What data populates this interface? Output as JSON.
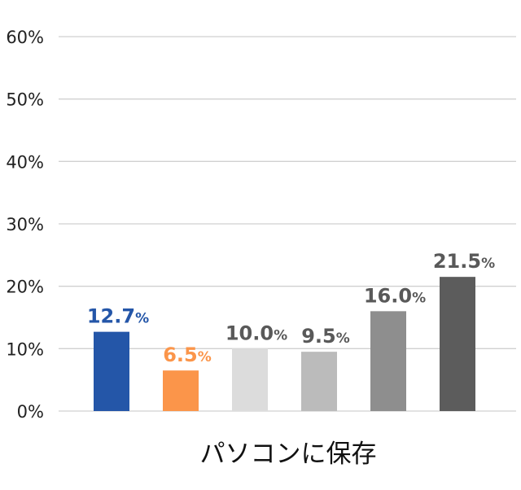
{
  "chart_data": {
    "type": "bar",
    "categories": [
      "",
      "",
      "",
      "",
      "",
      ""
    ],
    "values": [
      12.7,
      6.5,
      10.0,
      9.5,
      16.0,
      21.5
    ],
    "value_labels": [
      "12.7",
      "6.5",
      "10.0",
      "9.5",
      "16.0",
      "21.5"
    ],
    "value_unit": "%",
    "bar_colors": [
      "#2456a8",
      "#fb954a",
      "#dcdcdc",
      "#bbbbbb",
      "#8e8e8e",
      "#5c5c5c"
    ],
    "label_colors": [
      "#2456a8",
      "#fb954a",
      "#595959",
      "#595959",
      "#595959",
      "#595959"
    ],
    "ylim": [
      0,
      60
    ],
    "yticks": [
      0,
      10,
      20,
      30,
      40,
      50,
      60
    ],
    "ytick_labels": [
      "0%",
      "10%",
      "20%",
      "30%",
      "40%",
      "50%",
      "60%"
    ],
    "xlabel": "パソコンに保存",
    "ylabel": "",
    "title": "",
    "grid": true,
    "legend": "none"
  }
}
